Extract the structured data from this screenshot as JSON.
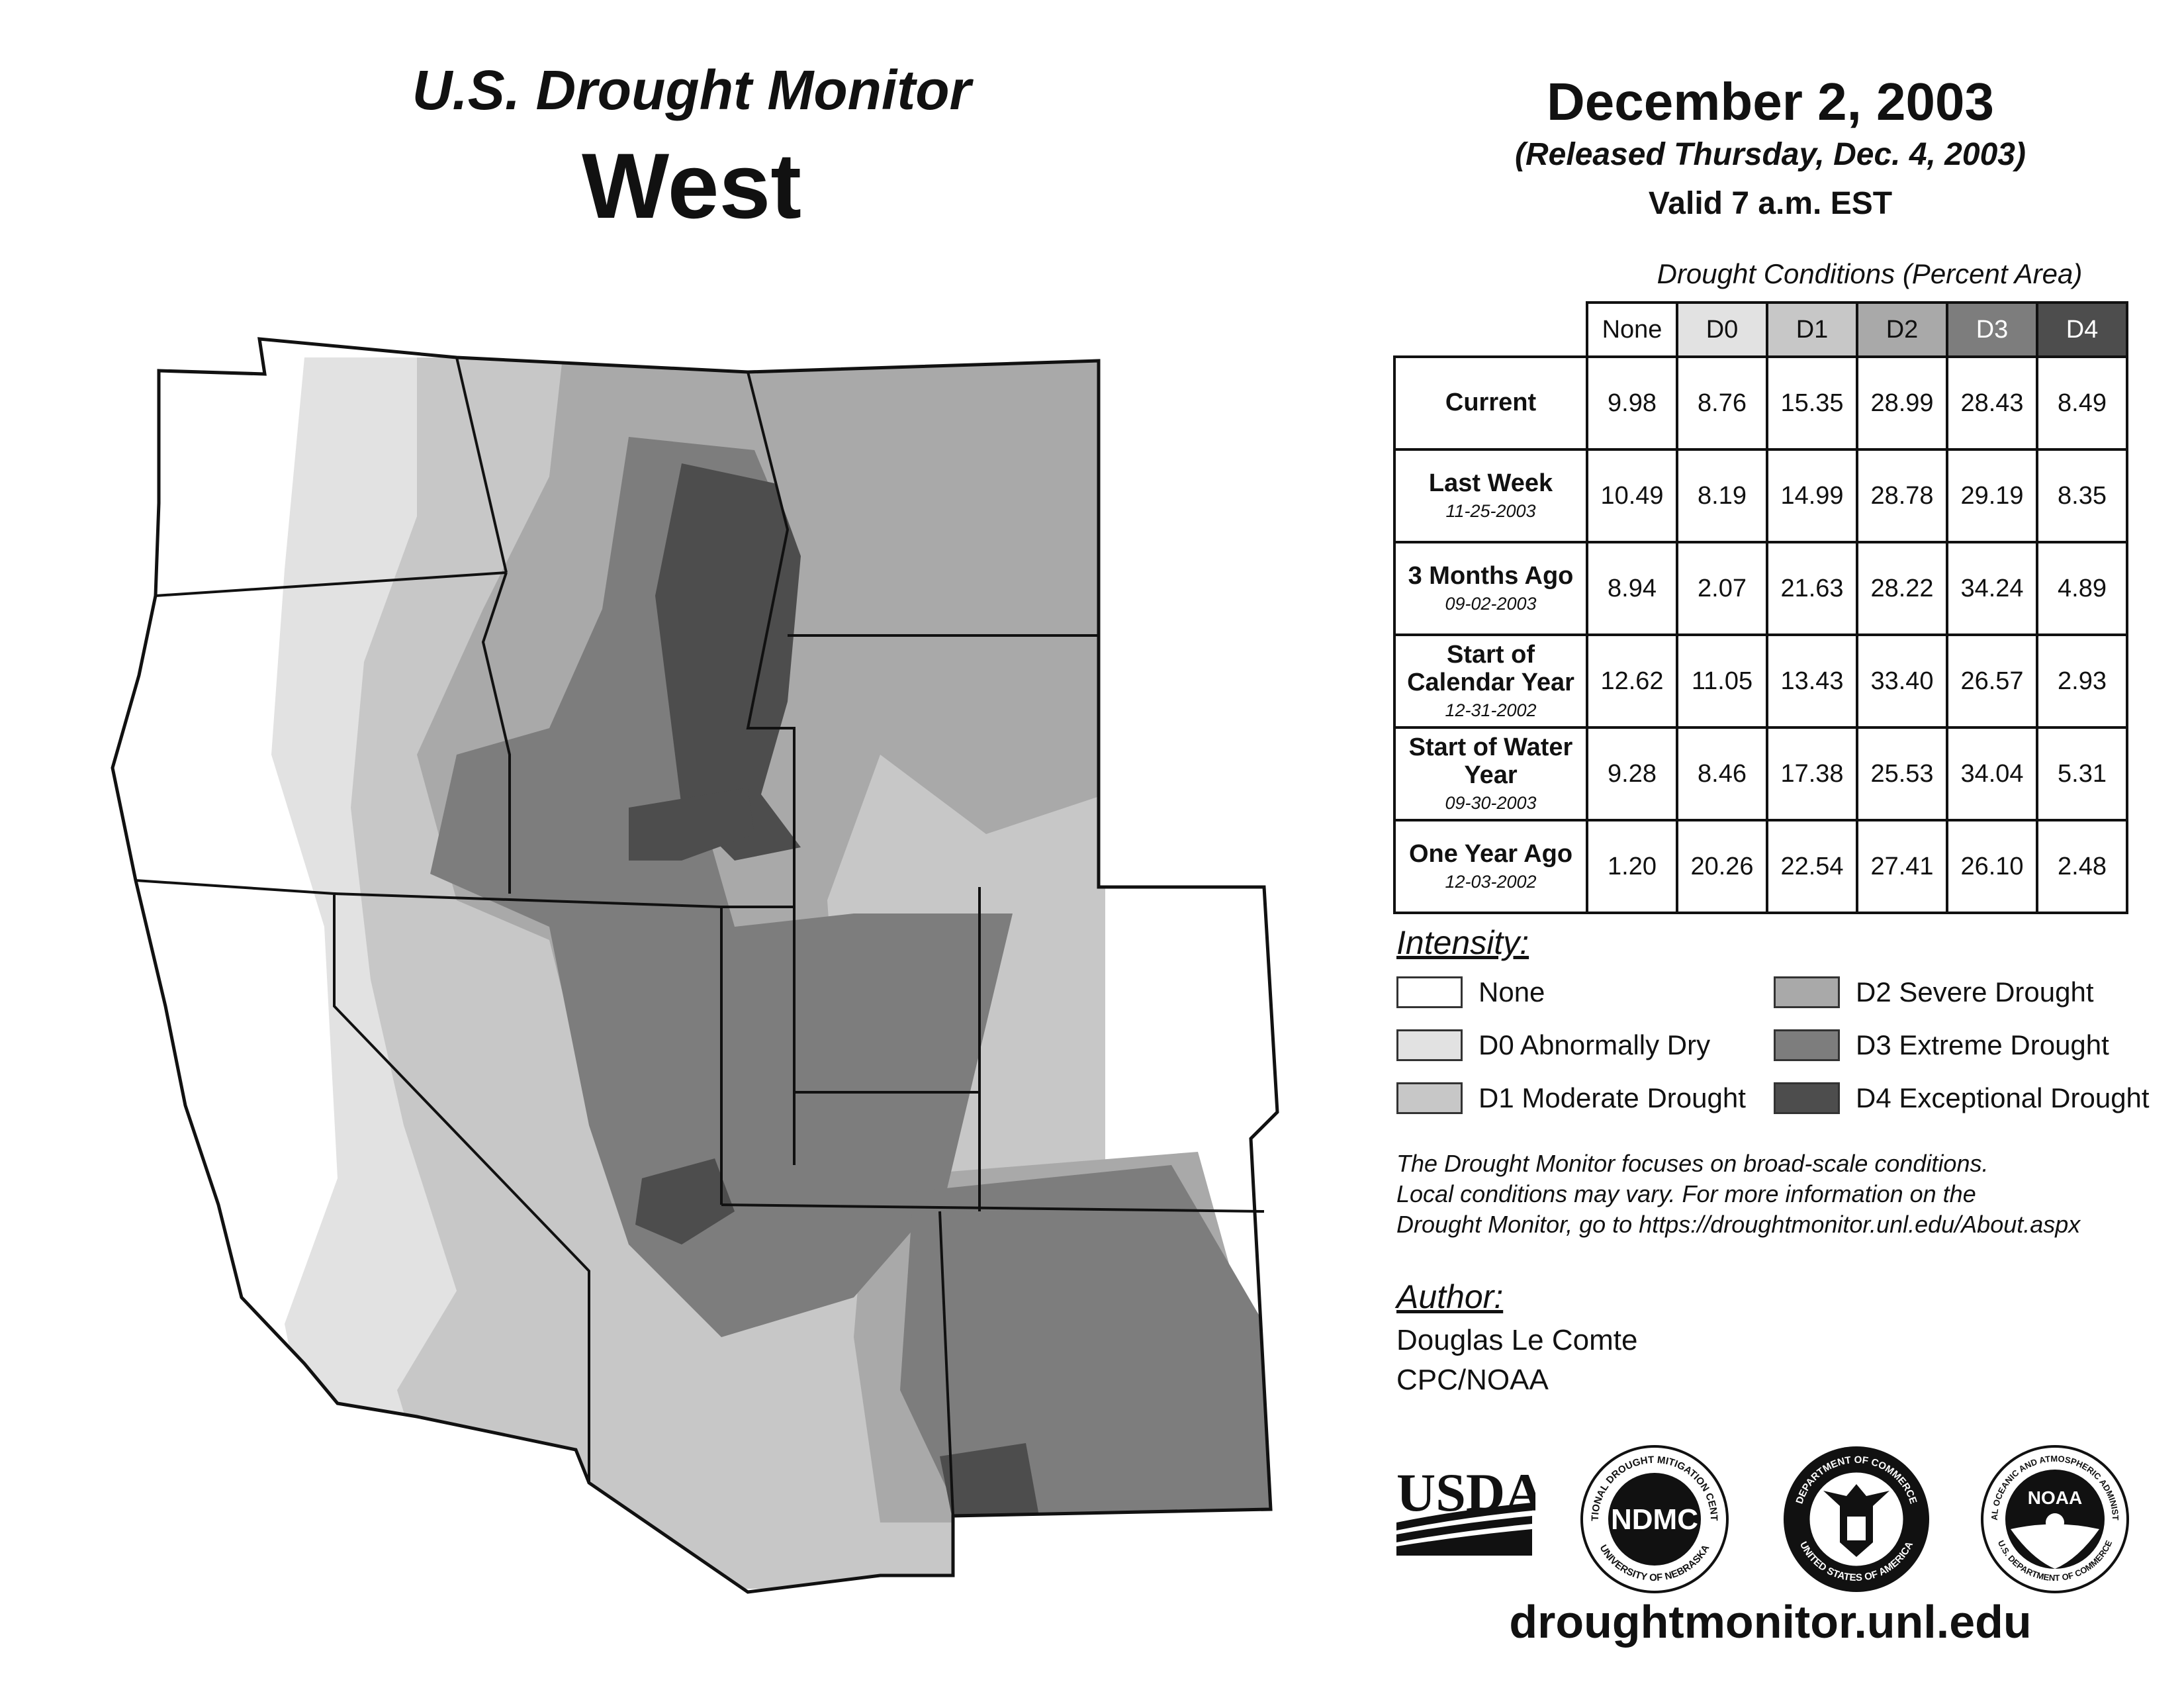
{
  "header": {
    "title_line1": "U.S. Drought Monitor",
    "title_line2": "West",
    "date": "December 2, 2003",
    "released": "(Released Thursday, Dec. 4, 2003)",
    "valid": "Valid 7 a.m. EST"
  },
  "stats_table": {
    "caption": "Drought Conditions (Percent Area)",
    "columns": [
      "None",
      "D0",
      "D1",
      "D2",
      "D3",
      "D4"
    ],
    "rows": [
      {
        "label": "Current",
        "date": "",
        "values": [
          "9.98",
          "8.76",
          "15.35",
          "28.99",
          "28.43",
          "8.49"
        ]
      },
      {
        "label": "Last Week",
        "date": "11-25-2003",
        "values": [
          "10.49",
          "8.19",
          "14.99",
          "28.78",
          "29.19",
          "8.35"
        ]
      },
      {
        "label": "3 Months Ago",
        "date": "09-02-2003",
        "values": [
          "8.94",
          "2.07",
          "21.63",
          "28.22",
          "34.24",
          "4.89"
        ]
      },
      {
        "label": "Start of Calendar Year",
        "date": "12-31-2002",
        "values": [
          "12.62",
          "11.05",
          "13.43",
          "33.40",
          "26.57",
          "2.93"
        ]
      },
      {
        "label": "Start of Water Year",
        "date": "09-30-2003",
        "values": [
          "9.28",
          "8.46",
          "17.38",
          "25.53",
          "34.04",
          "5.31"
        ]
      },
      {
        "label": "One Year Ago",
        "date": "12-03-2002",
        "values": [
          "1.20",
          "20.26",
          "22.54",
          "27.41",
          "26.10",
          "2.48"
        ]
      }
    ]
  },
  "legend": {
    "title": "Intensity:",
    "items": [
      {
        "label": "None",
        "color": "#ffffff"
      },
      {
        "label": "D0 Abnormally Dry",
        "color": "#e2e2e2"
      },
      {
        "label": "D1 Moderate Drought",
        "color": "#c7c7c7"
      },
      {
        "label": "D2 Severe Drought",
        "color": "#a9a9a9"
      },
      {
        "label": "D3 Extreme Drought",
        "color": "#7d7d7d"
      },
      {
        "label": "D4 Exceptional Drought",
        "color": "#4d4d4d"
      }
    ]
  },
  "note": {
    "line1": "The Drought Monitor focuses on broad-scale conditions.",
    "line2": "Local conditions may vary. For more information on the",
    "line3": "Drought Monitor, go to https://droughtmonitor.unl.edu/About.aspx"
  },
  "author": {
    "title": "Author:",
    "name": "Douglas Le Comte",
    "org": "CPC/NOAA"
  },
  "logos": {
    "usda": "USDA",
    "ndmc": "NDMC",
    "ndmc_ring_top": "NATIONAL DROUGHT MITIGATION CENTER",
    "ndmc_ring_bottom": "UNIVERSITY OF NEBRASKA",
    "doc_ring_top": "DEPARTMENT OF COMMERCE",
    "doc_ring_bottom": "UNITED STATES OF AMERICA",
    "noaa": "NOAA",
    "noaa_ring": "NATIONAL OCEANIC AND ATMOSPHERIC ADMINISTRATION",
    "noaa_ring_bottom": "U.S. DEPARTMENT OF COMMERCE"
  },
  "website": "droughtmonitor.unl.edu",
  "map_colors": {
    "none": "#ffffff",
    "d0": "#e2e2e2",
    "d1": "#c7c7c7",
    "d2": "#a9a9a9",
    "d3": "#7d7d7d",
    "d4": "#4d4d4d",
    "border": "#111111"
  }
}
